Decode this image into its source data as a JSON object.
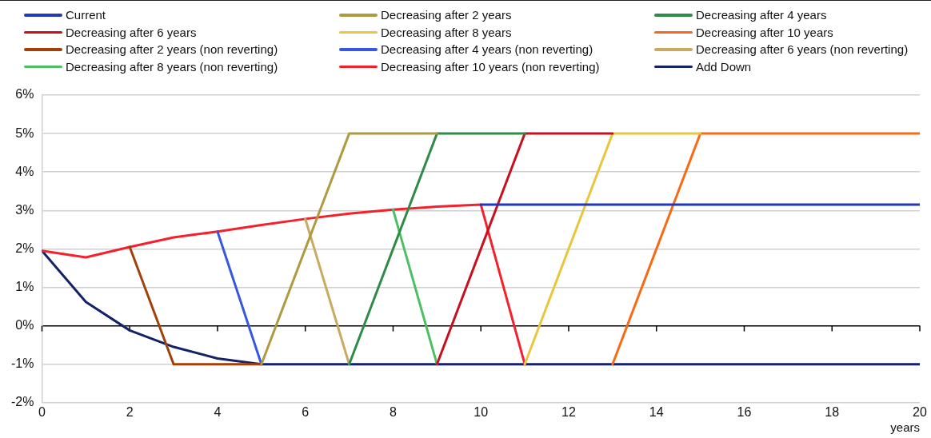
{
  "chart_data": {
    "type": "line",
    "xlabel": "years",
    "x": [
      0,
      1,
      2,
      3,
      4,
      5,
      6,
      7,
      8,
      9,
      10,
      11,
      12,
      13,
      14,
      15,
      16,
      17,
      18,
      19,
      20
    ],
    "xlim": [
      0,
      20
    ],
    "xticks": [
      0,
      2,
      4,
      6,
      8,
      10,
      12,
      14,
      16,
      18,
      20
    ],
    "ylim": [
      -2,
      6
    ],
    "yticks": [
      {
        "value": -2,
        "label": "-2%"
      },
      {
        "value": -1,
        "label": "-1%"
      },
      {
        "value": 0,
        "label": "0%"
      },
      {
        "value": 1,
        "label": "1%"
      },
      {
        "value": 2,
        "label": "2%"
      },
      {
        "value": 3,
        "label": "3%"
      },
      {
        "value": 4,
        "label": "4%"
      },
      {
        "value": 5,
        "label": "5%"
      },
      {
        "value": 6,
        "label": "6%"
      }
    ],
    "grid": "y",
    "legend": "top",
    "marker": "none",
    "line_style": "solid",
    "series": [
      {
        "name": "Current",
        "color": "#2039b8",
        "values": [
          null,
          null,
          null,
          null,
          null,
          null,
          null,
          null,
          null,
          null,
          3.15,
          3.15,
          3.15,
          3.15,
          3.15,
          3.15,
          3.15,
          3.15,
          3.15,
          3.15,
          3.15
        ]
      },
      {
        "name": "Decreasing after 2 years",
        "color": "#b09a40",
        "values": [
          null,
          null,
          null,
          null,
          null,
          -1,
          2,
          5,
          5,
          5,
          null,
          null,
          null,
          null,
          null,
          null,
          null,
          null,
          null,
          null,
          null
        ]
      },
      {
        "name": "Decreasing after 4 years",
        "color": "#2e8b4a",
        "values": [
          null,
          null,
          null,
          null,
          null,
          null,
          null,
          -1,
          2,
          5,
          5,
          5,
          null,
          null,
          null,
          null,
          null,
          null,
          null,
          null,
          null
        ]
      },
      {
        "name": "Decreasing after 6 years",
        "color": "#c8101e",
        "values": [
          null,
          null,
          null,
          null,
          null,
          null,
          null,
          null,
          null,
          -1,
          2,
          5,
          5,
          5,
          null,
          null,
          null,
          null,
          null,
          null,
          null
        ]
      },
      {
        "name": "Decreasing after 8 years",
        "color": "#ebc53c",
        "values": [
          null,
          null,
          null,
          null,
          null,
          null,
          null,
          null,
          null,
          null,
          null,
          -1,
          2,
          5,
          5,
          5,
          null,
          null,
          null,
          null,
          null
        ]
      },
      {
        "name": "Decreasing after 10 years",
        "color": "#f86a14",
        "values": [
          null,
          null,
          null,
          null,
          null,
          null,
          null,
          null,
          null,
          null,
          null,
          null,
          null,
          -1,
          2,
          5,
          5,
          5,
          5,
          5,
          5
        ]
      },
      {
        "name": "Decreasing after 2 years (non reverting)",
        "color": "#a0400a",
        "values": [
          null,
          null,
          2.05,
          -1,
          -1,
          -1,
          null,
          null,
          null,
          null,
          null,
          null,
          null,
          null,
          null,
          null,
          null,
          null,
          null,
          null,
          null
        ]
      },
      {
        "name": "Decreasing after 4 years (non reverting)",
        "color": "#3558e0",
        "values": [
          null,
          null,
          null,
          null,
          2.45,
          -1,
          null,
          null,
          null,
          null,
          null,
          null,
          null,
          null,
          null,
          null,
          null,
          null,
          null,
          null,
          null
        ]
      },
      {
        "name": "Decreasing after 6 years (non reverting)",
        "color": "#c8aa60",
        "values": [
          null,
          null,
          null,
          null,
          null,
          null,
          2.78,
          -1,
          null,
          null,
          null,
          null,
          null,
          null,
          null,
          null,
          null,
          null,
          null,
          null,
          null
        ]
      },
      {
        "name": "Decreasing after 8 years (non reverting)",
        "color": "#4cbf62",
        "values": [
          null,
          null,
          null,
          null,
          null,
          null,
          null,
          null,
          3.02,
          -1,
          null,
          null,
          null,
          null,
          null,
          null,
          null,
          null,
          null,
          null,
          null
        ]
      },
      {
        "name": "Decreasing after 10 years (non reverting)",
        "color": "#f5202c",
        "values": [
          1.95,
          1.78,
          2.05,
          2.3,
          2.45,
          2.62,
          2.78,
          2.92,
          3.02,
          3.1,
          3.15,
          -1,
          null,
          null,
          null,
          null,
          null,
          null,
          null,
          null,
          null
        ]
      },
      {
        "name": "Add Down",
        "color": "#14226a",
        "values": [
          1.95,
          0.62,
          -0.12,
          -0.55,
          -0.85,
          -1,
          -1,
          -1,
          -1,
          -1,
          -1,
          -1,
          -1,
          -1,
          -1,
          -1,
          -1,
          -1,
          -1,
          -1,
          -1
        ]
      }
    ]
  }
}
